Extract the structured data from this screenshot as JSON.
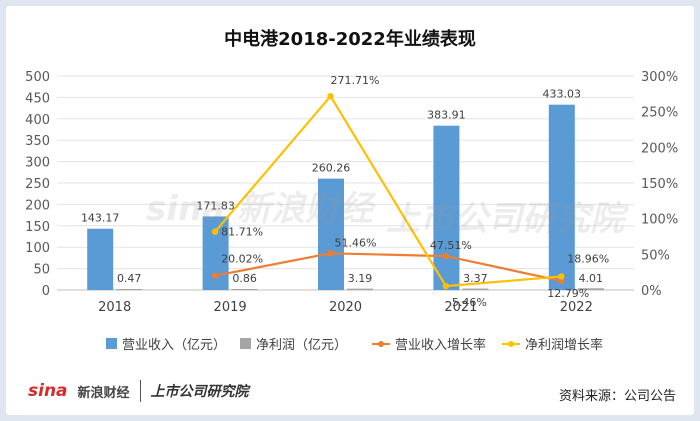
{
  "chart_data": {
    "type": "bar",
    "title": "中电港2018-2022年业绩表现",
    "categories": [
      "2018",
      "2019",
      "2020",
      "2021",
      "2022"
    ],
    "y_left": {
      "ylim": [
        0,
        500
      ],
      "ticks": [
        "0",
        "50",
        "100",
        "150",
        "200",
        "250",
        "300",
        "350",
        "400",
        "450",
        "500"
      ]
    },
    "y_right": {
      "ylim": [
        0,
        300
      ],
      "ticks": [
        "0%",
        "50%",
        "100%",
        "150%",
        "200%",
        "250%",
        "300%"
      ]
    },
    "series": [
      {
        "name": "营业收入（亿元）",
        "kind": "bar",
        "axis": "left",
        "color": "#5b9bd5",
        "values": [
          143.17,
          171.83,
          260.26,
          383.91,
          433.03
        ],
        "labels": [
          "143.17",
          "171.83",
          "260.26",
          "383.91",
          "433.03"
        ]
      },
      {
        "name": "净利润（亿元）",
        "kind": "bar",
        "axis": "left",
        "color": "#a5a5a5",
        "values": [
          0.47,
          0.86,
          3.19,
          3.37,
          4.01
        ],
        "labels": [
          "0.47",
          "0.86",
          "3.19",
          "3.37",
          "4.01"
        ]
      },
      {
        "name": "营业收入增长率",
        "kind": "line",
        "axis": "right",
        "color": "#ed7d31",
        "values": [
          null,
          20.02,
          51.46,
          47.51,
          12.79
        ],
        "labels": [
          "",
          "20.02%",
          "51.46%",
          "47.51%",
          "12.79%"
        ]
      },
      {
        "name": "净利润增长率",
        "kind": "line",
        "axis": "right",
        "color": "#ffc000",
        "values": [
          null,
          81.71,
          271.71,
          5.46,
          18.96
        ],
        "labels": [
          "",
          "81.71%",
          "271.71%",
          "5.46%",
          "18.96%"
        ]
      }
    ]
  },
  "footer": {
    "source": "资料来源：公司公告",
    "brand_sina": "sina",
    "brand_sina_cn": "新浪财经",
    "brand_column": "上市公司研究院"
  },
  "watermark": {
    "left_text": "sina 新浪财经",
    "right_text": "上市公司研究院"
  }
}
